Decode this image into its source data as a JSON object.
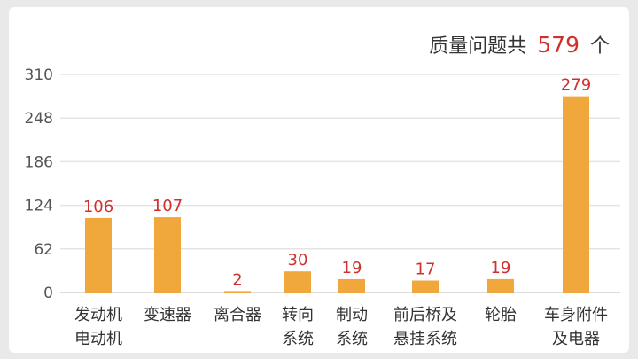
{
  "header": {
    "prefix": "质量问题共",
    "total": "579",
    "suffix": "个"
  },
  "colors": {
    "bar": "#f0a73c",
    "value_label": "#d0302c",
    "grid": "#e4e4e4",
    "axis": "#cfcfcf"
  },
  "chart_data": {
    "type": "bar",
    "title": "",
    "xlabel": "",
    "ylabel": "",
    "ylim": [
      0,
      310
    ],
    "yticks": [
      0,
      62,
      124,
      186,
      248,
      310
    ],
    "grid": true,
    "categories": [
      [
        "发动机",
        "电动机"
      ],
      [
        "变速器"
      ],
      [
        "离合器"
      ],
      [
        "转向",
        "系统"
      ],
      [
        "制动",
        "系统"
      ],
      [
        "前后桥及",
        "悬挂系统"
      ],
      [
        "轮胎"
      ],
      [
        "车身附件",
        "及电器"
      ]
    ],
    "values": [
      106,
      107,
      2,
      30,
      19,
      17,
      19,
      279
    ]
  }
}
